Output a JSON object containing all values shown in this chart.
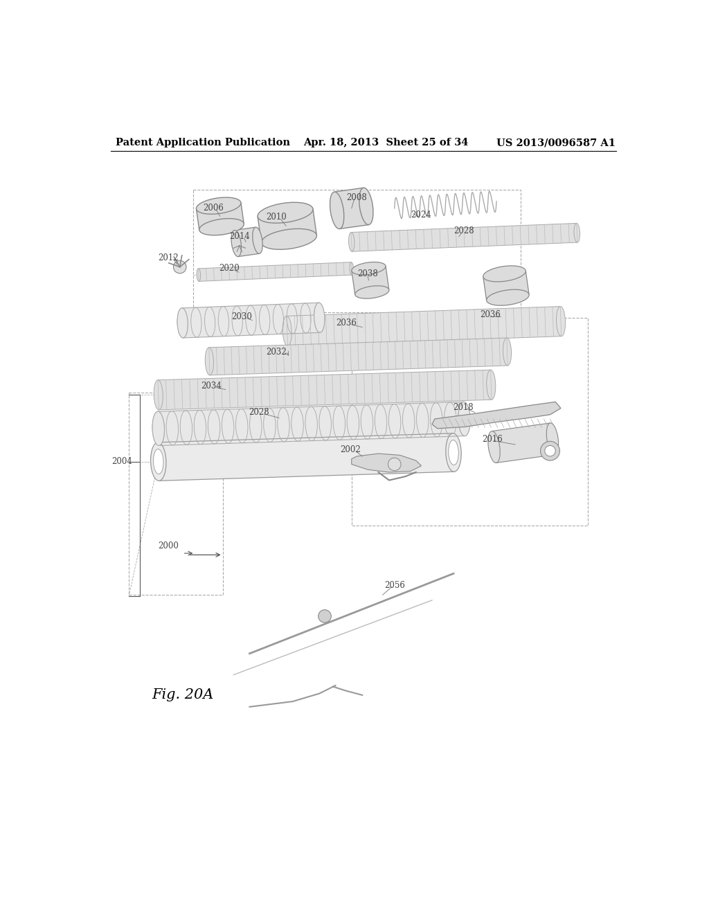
{
  "background_color": "#ffffff",
  "header_left": "Patent Application Publication",
  "header_center": "Apr. 18, 2013  Sheet 25 of 34",
  "header_right": "US 2013/0096587 A1",
  "figure_label": "Fig. 20A",
  "header_fontsize": 10.5,
  "figure_label_fontsize": 15,
  "ref_fontsize": 8.5,
  "line_color": "#555555",
  "light_gray": "#e8e8e8",
  "med_gray": "#cccccc",
  "dark_gray": "#999999"
}
